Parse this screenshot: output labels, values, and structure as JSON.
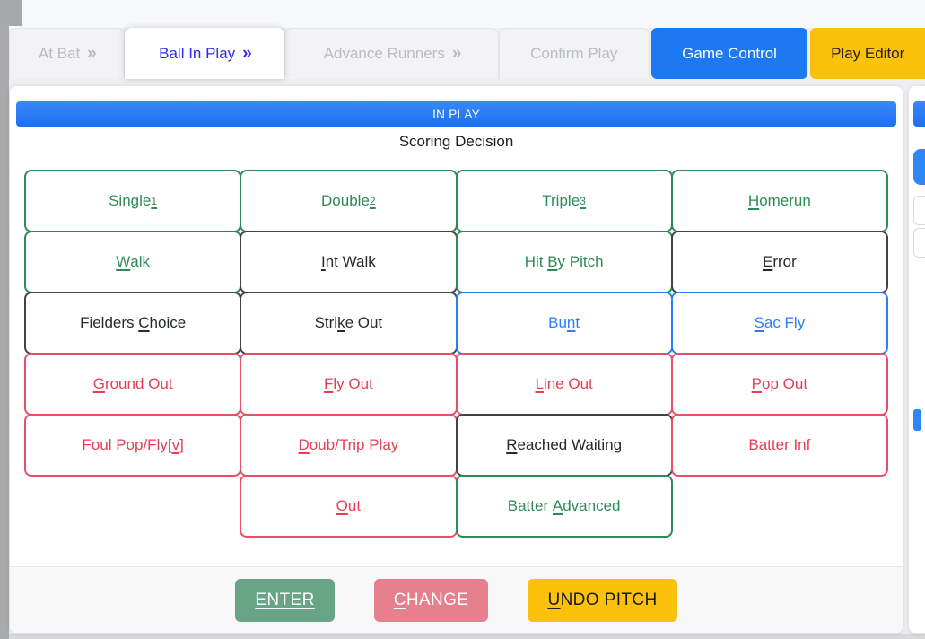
{
  "tabs": {
    "items": [
      {
        "label": "At Bat",
        "chevron": "»",
        "state": "inactive"
      },
      {
        "label": "Ball In Play",
        "chevron": "»",
        "state": "active"
      },
      {
        "label": "Advance Runners",
        "chevron": "»",
        "state": "inactive"
      },
      {
        "label": "Confirm Play",
        "chevron": "",
        "state": "inactive"
      }
    ],
    "game_control_label": "Game Control",
    "play_editor_label": "Play Editor"
  },
  "panel": {
    "header": "IN PLAY",
    "subtitle": "Scoring Decision"
  },
  "grid": {
    "rows": [
      [
        {
          "pre": "Single",
          "key": "1",
          "suf": "",
          "sup": true,
          "color": "green"
        },
        {
          "pre": "Double",
          "key": "2",
          "suf": "",
          "sup": true,
          "color": "green"
        },
        {
          "pre": "Triple",
          "key": "3",
          "suf": "",
          "sup": true,
          "color": "green"
        },
        {
          "pre": "",
          "key": "H",
          "suf": "omerun",
          "color": "green"
        }
      ],
      [
        {
          "pre": "",
          "key": "W",
          "suf": "alk",
          "color": "green"
        },
        {
          "pre": "",
          "key": "I",
          "suf": "nt Walk",
          "color": "dark"
        },
        {
          "pre": "Hit ",
          "key": "B",
          "suf": "y Pitch",
          "color": "green"
        },
        {
          "pre": "",
          "key": "E",
          "suf": "rror",
          "color": "dark"
        }
      ],
      [
        {
          "pre": "Fielders ",
          "key": "C",
          "suf": "hoice",
          "color": "dark"
        },
        {
          "pre": "Stri",
          "key": "k",
          "suf": "e Out",
          "color": "dark"
        },
        {
          "pre": "Bu",
          "key": "n",
          "suf": "t",
          "color": "blue"
        },
        {
          "pre": "",
          "key": "S",
          "suf": "ac Fly",
          "color": "blue"
        }
      ],
      [
        {
          "pre": "",
          "key": "G",
          "suf": "round Out",
          "color": "red"
        },
        {
          "pre": "",
          "key": "F",
          "suf": "ly Out",
          "color": "red"
        },
        {
          "pre": "",
          "key": "L",
          "suf": "ine Out",
          "color": "red"
        },
        {
          "pre": "",
          "key": "P",
          "suf": "op Out",
          "color": "red"
        }
      ],
      [
        {
          "pre": "Foul Pop/Fly[",
          "key": "v",
          "suf": "]",
          "color": "red"
        },
        {
          "pre": "",
          "key": "D",
          "suf": "oub/Trip Play",
          "color": "red"
        },
        {
          "pre": "",
          "key": "R",
          "suf": "eached Waiting",
          "color": "dark"
        },
        {
          "pre": "Batter Inf",
          "key": "",
          "suf": "",
          "color": "red"
        }
      ],
      [
        {
          "empty": true
        },
        {
          "pre": "",
          "key": "O",
          "suf": "ut",
          "color": "red"
        },
        {
          "pre": "Batter ",
          "key": "A",
          "suf": "dvanced",
          "color": "green"
        },
        {
          "empty": true
        }
      ]
    ]
  },
  "footer": {
    "enter": {
      "pre": "",
      "key": "ENTER",
      "suf": ""
    },
    "change": {
      "pre": "",
      "key": "C",
      "suf": "HANGE"
    },
    "undo": {
      "pre": "",
      "key": "U",
      "suf": "NDO PITCH"
    }
  },
  "theme": {
    "header_blue": "#2d7ff5",
    "active_tab_blue": "#2a2bf0",
    "game_control_blue": "#1d79f2",
    "amber": "#fcc10a",
    "green": "#2e8b57",
    "blue": "#2e7df6",
    "red": "#e73e55",
    "dark": "#26292e",
    "enter_green": "#6aa487",
    "change_pink": "#e6808d"
  }
}
